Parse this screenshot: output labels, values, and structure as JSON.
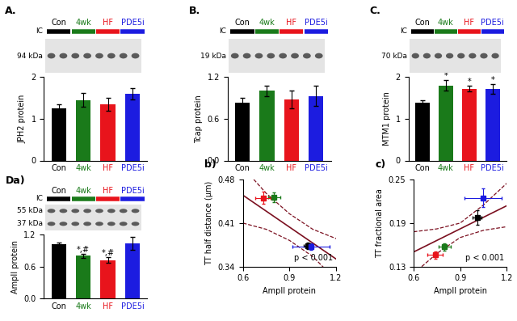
{
  "chart_data": [
    {
      "type": "bar",
      "panel_label": "A.",
      "categories": [
        "Con",
        "4wk",
        "HF",
        "PDE5i"
      ],
      "values": [
        1.25,
        1.45,
        1.35,
        1.6
      ],
      "errors": [
        0.1,
        0.17,
        0.15,
        0.13
      ],
      "colors": [
        "#000000",
        "#1a7a1a",
        "#e8141c",
        "#1c1ce0"
      ],
      "ylabel": "JPH2 protein",
      "ylim": [
        0,
        2
      ],
      "yticks": [
        0,
        1,
        2
      ],
      "blot": {
        "control_label": "IC",
        "mw_labels": [
          "94 kDa"
        ]
      }
    },
    {
      "type": "bar",
      "panel_label": "B.",
      "categories": [
        "Con",
        "4wk",
        "HF",
        "PDE5i"
      ],
      "values": [
        0.83,
        1.0,
        0.88,
        0.93
      ],
      "errors": [
        0.07,
        0.08,
        0.13,
        0.15
      ],
      "colors": [
        "#000000",
        "#1a7a1a",
        "#e8141c",
        "#1c1ce0"
      ],
      "ylabel": "Tcap protein",
      "ylim": [
        0.0,
        1.2
      ],
      "yticks": [
        0.0,
        0.6,
        1.2
      ],
      "blot": {
        "control_label": "IC",
        "mw_labels": [
          "19 kDa"
        ]
      }
    },
    {
      "type": "bar",
      "panel_label": "C.",
      "categories": [
        "Con",
        "4wk",
        "HF",
        "PDE5i"
      ],
      "values": [
        1.38,
        1.8,
        1.72,
        1.72
      ],
      "errors": [
        0.07,
        0.13,
        0.07,
        0.12
      ],
      "colors": [
        "#000000",
        "#1a7a1a",
        "#e8141c",
        "#1c1ce0"
      ],
      "annotations": [
        null,
        "*",
        "*",
        "*"
      ],
      "ylabel": "MTM1 protein",
      "ylim": [
        0,
        2
      ],
      "yticks": [
        0,
        1,
        2
      ],
      "blot": {
        "control_label": "IC",
        "mw_labels": [
          "70 kDa"
        ]
      }
    },
    {
      "type": "bar",
      "panel_label": "Da)",
      "categories": [
        "Con",
        "4wk",
        "HF",
        "PDE5i"
      ],
      "values": [
        1.02,
        0.8,
        0.72,
        1.03
      ],
      "errors": [
        0.03,
        0.04,
        0.05,
        0.12
      ],
      "colors": [
        "#000000",
        "#1a7a1a",
        "#e8141c",
        "#1c1ce0"
      ],
      "annotations": [
        null,
        "*,#",
        "*,#",
        null
      ],
      "ylabel": "AmpII protein",
      "ylim": [
        0.0,
        1.2
      ],
      "yticks": [
        0.0,
        0.6,
        1.2
      ],
      "blot": {
        "control_label": "IC",
        "mw_labels": [
          "55 kDa",
          "37 kDa"
        ]
      }
    },
    {
      "type": "scatter",
      "panel_label": "b)",
      "marker": "square",
      "color": "#7b1020",
      "x": [
        1.02,
        0.8,
        0.73,
        1.04
      ],
      "y": [
        0.373,
        0.452,
        0.451,
        0.372
      ],
      "xerr": [
        0.03,
        0.04,
        0.05,
        0.12
      ],
      "yerr": [
        0.005,
        0.008,
        0.01,
        0.005
      ],
      "colors": [
        "#000000",
        "#1a7a1a",
        "#e8141c",
        "#1c1ce0"
      ],
      "fit": {
        "x": [
          0.6,
          1.2
        ],
        "y": [
          0.455,
          0.352
        ]
      },
      "ci_upper": {
        "x": [
          0.6,
          0.75,
          0.9,
          1.05,
          1.2
        ],
        "y": [
          0.5,
          0.458,
          0.425,
          0.4,
          0.385
        ]
      },
      "ci_lower": {
        "x": [
          0.6,
          0.75,
          0.9,
          1.05,
          1.2
        ],
        "y": [
          0.41,
          0.4,
          0.382,
          0.356,
          0.318
        ]
      },
      "annotations": [
        "p < 0.001"
      ],
      "xlabel": "AmpII protein",
      "ylabel": "TT half distance (µm)",
      "xlim": [
        0.6,
        1.2
      ],
      "xticks": [
        0.6,
        0.9,
        1.2
      ],
      "ylim": [
        0.34,
        0.48
      ],
      "yticks": [
        0.34,
        0.41,
        0.48
      ]
    },
    {
      "type": "scatter",
      "panel_label": "c)",
      "marker": "square",
      "color": "#7b1020",
      "x": [
        1.01,
        0.8,
        0.74,
        1.05
      ],
      "y": [
        0.198,
        0.157,
        0.146,
        0.225
      ],
      "xerr": [
        0.03,
        0.04,
        0.05,
        0.12
      ],
      "yerr": [
        0.01,
        0.005,
        0.005,
        0.013
      ],
      "colors": [
        "#000000",
        "#1a7a1a",
        "#e8141c",
        "#1c1ce0"
      ],
      "fit": {
        "x": [
          0.6,
          1.2
        ],
        "y": [
          0.15,
          0.214
        ]
      },
      "ci_upper": {
        "x": [
          0.6,
          0.75,
          0.9,
          1.05,
          1.2
        ],
        "y": [
          0.178,
          0.182,
          0.19,
          0.215,
          0.245
        ]
      },
      "ci_lower": {
        "x": [
          0.6,
          0.75,
          0.9,
          1.05,
          1.2
        ],
        "y": [
          0.12,
          0.148,
          0.17,
          0.18,
          0.185
        ]
      },
      "annotations": [
        "p < 0.001"
      ],
      "xlabel": "AmpII protein",
      "ylabel": "TT fractional area",
      "xlim": [
        0.6,
        1.2
      ],
      "xticks": [
        0.6,
        0.9,
        1.2
      ],
      "ylim": [
        0.13,
        0.25
      ],
      "yticks": [
        0.13,
        0.19,
        0.25
      ]
    }
  ]
}
